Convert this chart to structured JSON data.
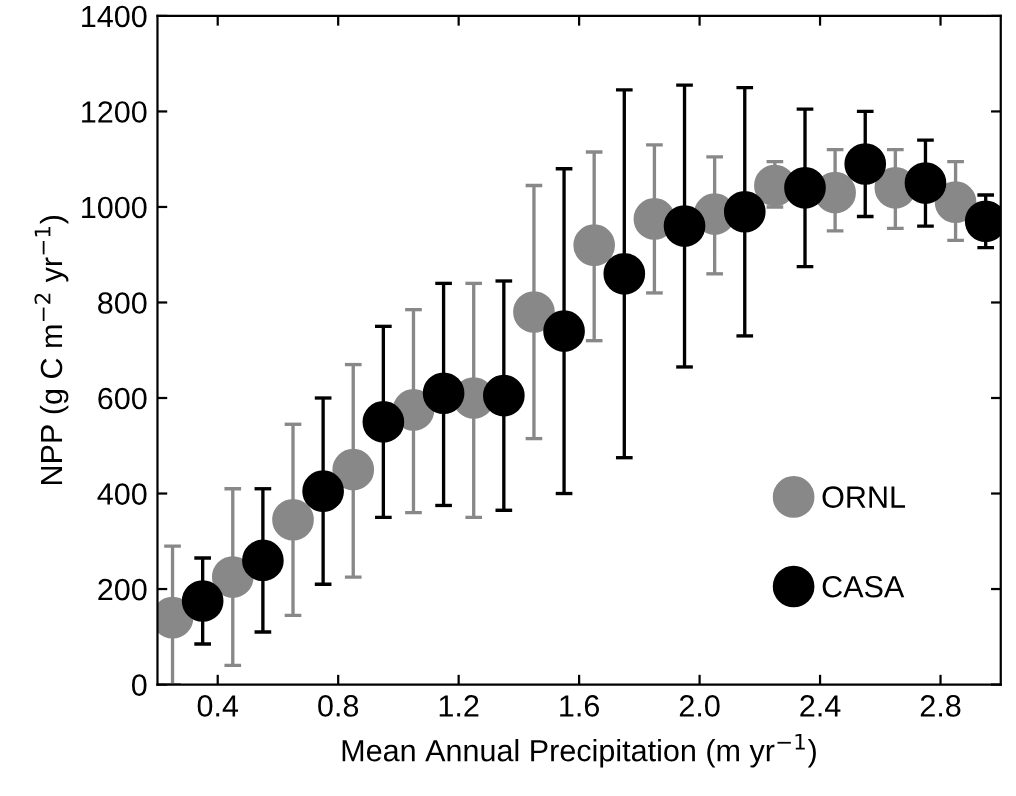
{
  "chart_data": {
    "type": "scatter",
    "xlabel": "Mean Annual Precipitation (m yr$^{−1}$)",
    "ylabel": "NPP (g C m$^{−2}$ yr$^{−1}$)",
    "xlim": [
      0.2,
      3.0
    ],
    "xticks": [
      0.4,
      0.8,
      1.2,
      1.6,
      {
        "value": 2,
        "label": "2.0"
      },
      2.4,
      2.8
    ],
    "ylim": [
      0,
      1400
    ],
    "yticks": [
      0,
      200,
      400,
      600,
      800,
      1000,
      1200,
      1400
    ],
    "grid": false,
    "legend": "bottom right",
    "marker": "circle",
    "series": [
      {
        "name": "ORNL",
        "color": "#888888",
        "x": [
          0.25,
          0.45,
          0.65,
          0.85,
          1.05,
          1.25,
          1.45,
          1.65,
          1.85,
          2.05,
          2.25,
          2.45,
          2.65,
          2.85
        ],
        "values": [
          140,
          225,
          345,
          450,
          575,
          600,
          780,
          920,
          975,
          985,
          1045,
          1030,
          1040,
          1010
        ],
        "errors": [
          [
            0,
            290
          ],
          [
            40,
            410
          ],
          [
            145,
            545
          ],
          [
            225,
            670
          ],
          [
            360,
            785
          ],
          [
            350,
            840
          ],
          [
            515,
            1045
          ],
          [
            720,
            1115
          ],
          [
            820,
            1130
          ],
          [
            860,
            1105
          ],
          [
            1000,
            1095
          ],
          [
            950,
            1120
          ],
          [
            955,
            1120
          ],
          [
            930,
            1095
          ]
        ]
      },
      {
        "name": "CASA",
        "color": "#000000",
        "x": [
          0.35,
          0.55,
          0.75,
          0.95,
          1.15,
          1.35,
          1.55,
          1.75,
          1.95,
          2.15,
          2.35,
          2.55,
          2.75,
          2.95
        ],
        "values": [
          175,
          260,
          405,
          550,
          610,
          605,
          740,
          860,
          960,
          990,
          1040,
          1090,
          1050,
          970
        ],
        "errors": [
          [
            85,
            265
          ],
          [
            110,
            410
          ],
          [
            210,
            600
          ],
          [
            350,
            750
          ],
          [
            375,
            840
          ],
          [
            365,
            845
          ],
          [
            400,
            1080
          ],
          [
            475,
            1245
          ],
          [
            665,
            1255
          ],
          [
            730,
            1250
          ],
          [
            875,
            1205
          ],
          [
            980,
            1200
          ],
          [
            960,
            1140
          ],
          [
            915,
            1025
          ]
        ]
      }
    ]
  }
}
